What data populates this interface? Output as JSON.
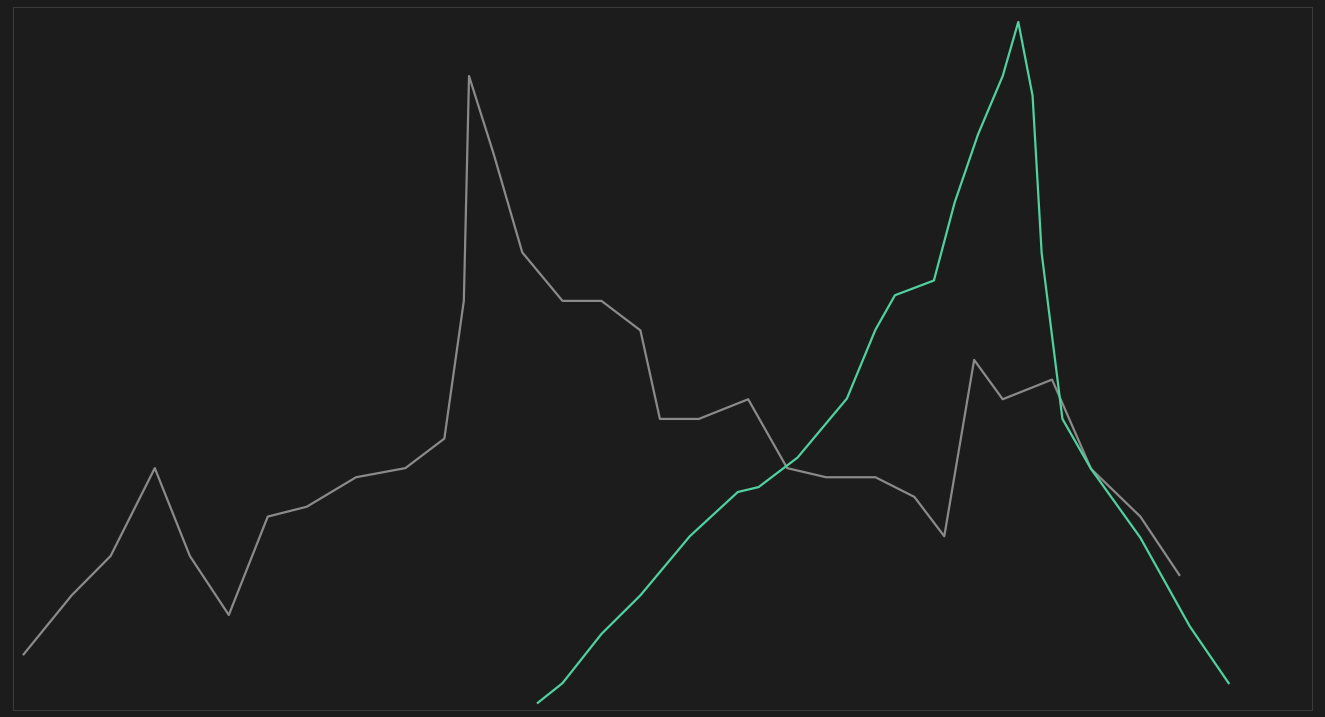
{
  "chart_data": {
    "type": "line",
    "xlim": [
      0,
      100
    ],
    "ylim": [
      0,
      100
    ],
    "tick_labels": false,
    "grid": false,
    "series": [
      {
        "color": "#8a8a8a",
        "line_style": "solid",
        "x": [
          0.8,
          4.5,
          7.5,
          10.9,
          13.6,
          16.6,
          19.6,
          22.6,
          26.4,
          30.2,
          33.2,
          34.7,
          35.1,
          37.0,
          39.2,
          42.3,
          45.3,
          48.3,
          49.8,
          52.8,
          56.6,
          59.6,
          62.6,
          66.4,
          69.4,
          71.7,
          74.0,
          76.2,
          80.0,
          83.0,
          86.8,
          89.8
        ],
        "values": [
          7.9,
          16.3,
          21.9,
          34.4,
          21.9,
          13.5,
          27.5,
          28.9,
          33.1,
          34.4,
          38.6,
          58.2,
          90.2,
          79.1,
          65.1,
          58.2,
          58.2,
          54.0,
          41.4,
          41.4,
          44.2,
          34.4,
          33.1,
          33.1,
          30.3,
          24.7,
          49.8,
          44.2,
          47.0,
          34.3,
          27.5,
          19.2
        ]
      },
      {
        "color": "#4fd1a0",
        "line_style": "solid",
        "x": [
          40.4,
          42.3,
          45.3,
          48.3,
          52.1,
          55.8,
          57.4,
          60.4,
          64.2,
          66.4,
          67.9,
          70.9,
          72.5,
          74.3,
          76.2,
          77.4,
          78.5,
          79.2,
          80.8,
          83.0,
          86.8,
          90.6,
          93.6
        ],
        "values": [
          1.0,
          3.8,
          10.8,
          16.3,
          24.7,
          31.0,
          31.7,
          35.9,
          44.3,
          54.1,
          59.0,
          61.1,
          72.2,
          81.9,
          90.2,
          97.9,
          87.4,
          65.0,
          41.4,
          34.3,
          24.5,
          11.9,
          3.8
        ]
      }
    ]
  }
}
